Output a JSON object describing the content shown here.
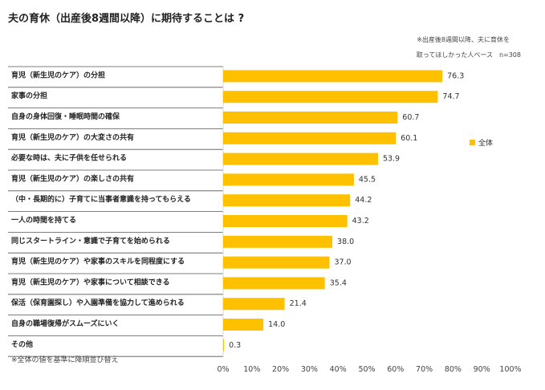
{
  "colors": {
    "bar": "#FFC000",
    "row_line": "#555555",
    "grid": "#d9d9d9"
  },
  "chart_data": {
    "type": "bar",
    "orientation": "horizontal",
    "title": "夫の育休（出産後8週間以降）に期待することは ?",
    "note_lines": [
      "※出産後8週間以降、夫に育休を",
      "取ってほしかった人ベース　n=308"
    ],
    "footnote": "※全体の値を基準に降順並び替え",
    "legend": [
      "全体"
    ],
    "categories": [
      "育児（新生児のケア）の分担",
      "家事の分担",
      "自身の身体回復・睡眠時間の確保",
      "育児（新生児のケア）の大変さの共有",
      "必要な時は、夫に子供を任せられる",
      "育児（新生児のケア）の楽しさの共有",
      "（中・長期的に）子育てに当事者意識を持ってもらえる",
      "一人の時間を持てる",
      "同じスタートライン・意識で子育てを始められる",
      "育児（新生児のケア）や家事のスキルを同程度にする",
      "育児（新生児のケア）や家事について相談できる",
      "保活（保育園探し）や入園準備を協力して進められる",
      "自身の職場復帰がスムーズにいく",
      "その他"
    ],
    "series": [
      {
        "name": "全体",
        "values": [
          76.3,
          74.7,
          60.7,
          60.1,
          53.9,
          45.5,
          44.2,
          43.2,
          38.0,
          37.0,
          35.4,
          21.4,
          14.0,
          0.3
        ]
      }
    ],
    "xlim": [
      0,
      100
    ],
    "xticks": [
      "0%",
      "10%",
      "20%",
      "30%",
      "40%",
      "50%",
      "60%",
      "70%",
      "80%",
      "90%",
      "100%"
    ]
  }
}
